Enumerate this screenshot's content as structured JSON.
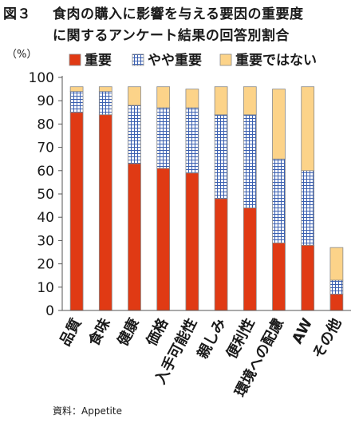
{
  "figure_label": "図３",
  "title_line1": "食肉の購入に影響を与える要因の重要度",
  "title_line2": "に関するアンケート結果の回答別割合",
  "source": "資料：Appetite",
  "chart_data": {
    "type": "bar",
    "stacked": true,
    "unit": "（%）",
    "categories": [
      "品質",
      "食味",
      "健康",
      "価格",
      "入手可能性",
      "親しみ",
      "便利性",
      "環境への配慮",
      "AW",
      "その他"
    ],
    "series": [
      {
        "name": "重要",
        "color": "#e03a14",
        "values": [
          85,
          84,
          63,
          61,
          59,
          48,
          44,
          29,
          28,
          7
        ]
      },
      {
        "name": "やや重要",
        "color": "#ffffff",
        "pattern_color": "#3a5fb0",
        "values": [
          9,
          10,
          25,
          26,
          28,
          36,
          40,
          36,
          32,
          6
        ]
      },
      {
        "name": "重要ではない",
        "color": "#fcd389",
        "values": [
          2,
          2,
          8,
          9,
          8,
          12,
          12,
          30,
          36,
          14
        ]
      }
    ],
    "ylim": [
      0,
      100
    ],
    "yticks": [
      0,
      10,
      20,
      30,
      40,
      50,
      60,
      70,
      80,
      90,
      100
    ],
    "legend_position": "top",
    "grid": false
  }
}
